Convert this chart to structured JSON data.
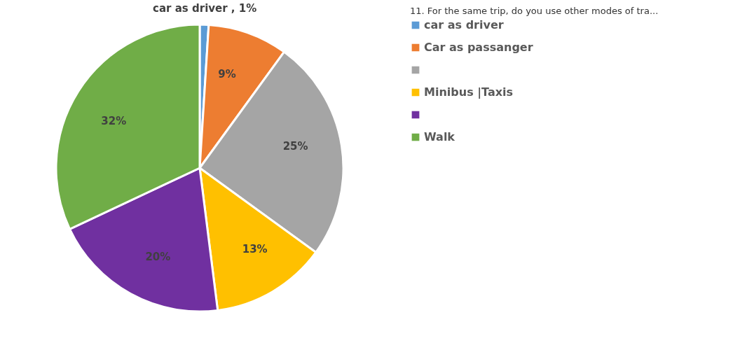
{
  "chart_data": {
    "type": "pie",
    "legend_title": "11.  For the same trip, do you use other modes of tra...",
    "categories": [
      "car as driver",
      "Car as passanger",
      null,
      "Minibus |Taxis",
      null,
      "Walk"
    ],
    "values": [
      1,
      9,
      25,
      13,
      20,
      32
    ],
    "colors": [
      "#5b9bd5",
      "#ed7d31",
      "#a5a5a5",
      "#ffc000",
      "#7030a0",
      "#70ad47"
    ],
    "value_labels": [
      "car as driver , 1%",
      "9%",
      "25%",
      "13%",
      "20%",
      "32%"
    ],
    "legend": "right"
  }
}
